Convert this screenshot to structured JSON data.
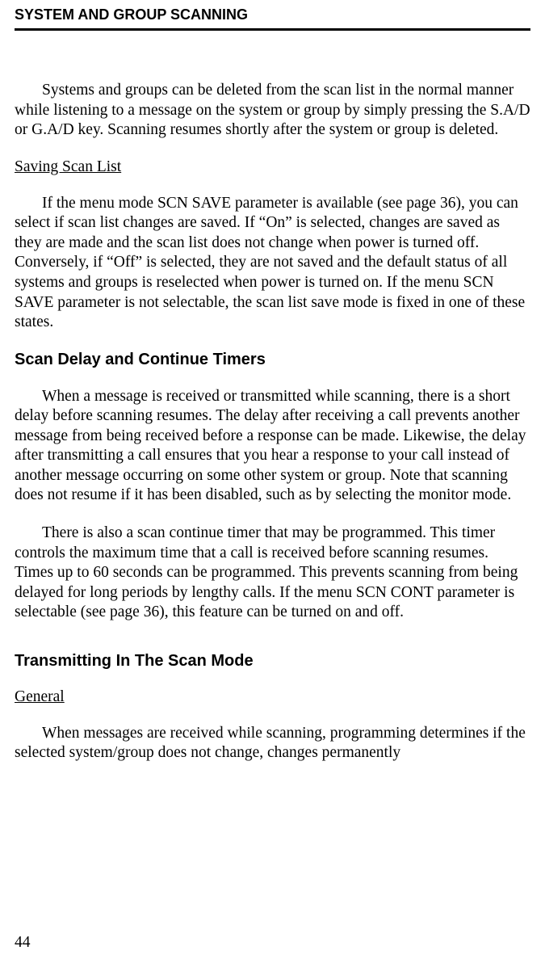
{
  "header": {
    "title": "SYSTEM AND GROUP SCANNING"
  },
  "paragraphs": {
    "p1": "Systems and groups can be deleted from the scan list in the normal manner while listening to a message on the system or group by simply pressing the S.A/D or G.A/D key. Scanning resumes shortly after the system or group is deleted."
  },
  "savingScanList": {
    "heading": "Saving Scan List",
    "p1": "If the menu mode SCN SAVE parameter is available (see page 36), you can select if scan list changes are saved. If “On” is selected, changes are saved as they are made and the scan list does not change when power is turned off. Conversely, if “Off” is selected, they are not saved and the default status of all systems and groups is reselected when power is turned on. If the menu SCN SAVE parameter is not selectable, the scan list save mode is fixed in one of these states."
  },
  "scanDelay": {
    "heading": "Scan Delay and Continue Timers",
    "p1": "When a message is received or transmitted while scanning, there is a short delay before scanning resumes. The delay after receiving a call prevents another message from being received before a response can be made. Likewise, the delay after transmitting a call ensures that you hear a response to your call instead of another message occurring on some other system or group. Note that scanning does not resume if it has been disabled, such as by selecting the monitor mode.",
    "p2": "There is also a scan continue timer that may be programmed. This timer controls the maximum time that a call is received before scanning resumes. Times up to 60 seconds can be programmed. This prevents scanning from being delayed for long periods by lengthy calls. If the menu SCN CONT parameter is selectable (see page 36), this feature can be turned on and off."
  },
  "transmitting": {
    "heading": "Transmitting In The Scan Mode",
    "generalHeading": "General",
    "p1": "When messages are received while scanning, programming determines if the selected system/group does not change, changes permanently"
  },
  "pageNumber": "44"
}
